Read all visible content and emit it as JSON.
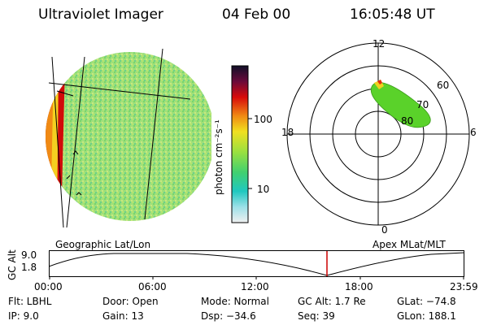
{
  "header": {
    "title": "Ultraviolet Imager",
    "date": "04 Feb 00",
    "time": "16:05:48 UT"
  },
  "colorbar": {
    "label": "photon cm⁻²s⁻¹",
    "ticks": [
      "100",
      "10"
    ]
  },
  "polar": {
    "mlt_labels": {
      "top": "12",
      "left": "18",
      "right": "6",
      "bottom": "0"
    },
    "lat_labels": [
      "60",
      "70",
      "80"
    ]
  },
  "panel_labels": {
    "left": "Geographic Lat/Lon",
    "right": "Apex MLat/MLT"
  },
  "altitude_plot": {
    "ylabel": "GC Alt",
    "yticks": [
      "9.0",
      "1.8"
    ],
    "xticks": [
      "00:00",
      "06:00",
      "12:00",
      "18:00",
      "23:59"
    ],
    "marker_color": "#cc0000"
  },
  "info": {
    "flt": "Flt: LBHL",
    "ip": "IP:  9.0",
    "door": "Door: Open",
    "gain": "Gain: 13",
    "mode": "Mode: Normal",
    "dsp": "Dsp:  −34.6",
    "gcalt": "GC Alt: 1.7 Re",
    "seq": "Seq: 39",
    "glat": "GLat: −74.8",
    "glon": "GLon: 188.1"
  }
}
